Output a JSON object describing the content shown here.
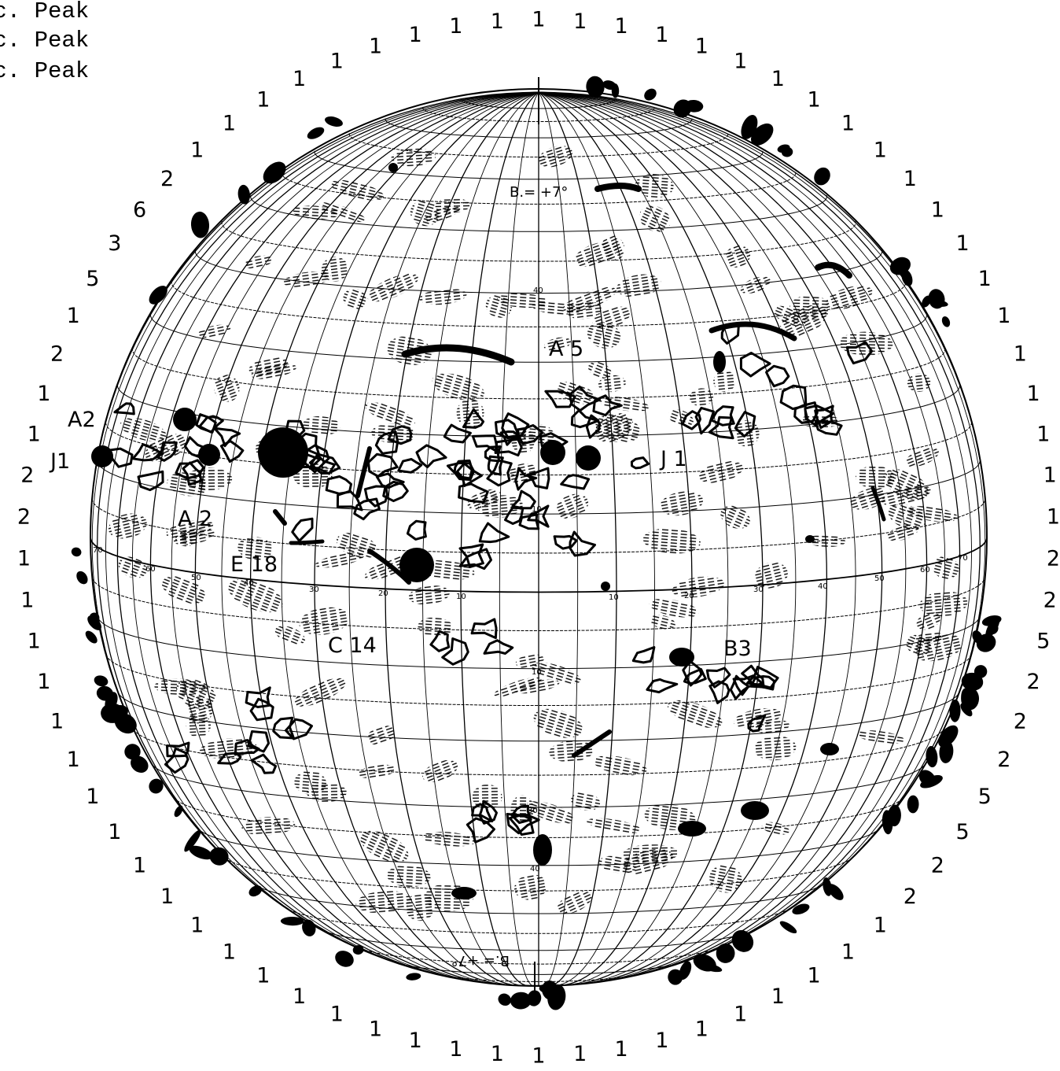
{
  "header_lines": [
    "ac. Peak",
    "ac. Peak",
    "ac. Peak"
  ],
  "pole_labels": {
    "north": "B.= +7°",
    "south": "B.= +7°"
  },
  "region_labels": [
    {
      "text": "A 5"
    },
    {
      "text": "A2"
    },
    {
      "text": "J1"
    },
    {
      "text": "A 2"
    },
    {
      "text": "E 18"
    },
    {
      "text": "J 1"
    },
    {
      "text": "C 14"
    },
    {
      "text": "B3"
    }
  ],
  "grid_tick_labels": [
    "70",
    "60",
    "50",
    "40",
    "30",
    "20",
    "10",
    "10",
    "20",
    "30",
    "40",
    "50",
    "60",
    "70",
    "40",
    "10",
    "10",
    "30",
    "40"
  ],
  "rim_numbers": [
    "1",
    "1",
    "1",
    "1",
    "1",
    "1",
    "1",
    "1",
    "1",
    "1",
    "1",
    "1",
    "1",
    "1",
    "1",
    "1",
    "1",
    "1",
    "1",
    "1",
    "2",
    "2",
    "5",
    "2",
    "2",
    "2",
    "5",
    "5",
    "2",
    "2",
    "1",
    "1",
    "1",
    "1",
    "1",
    "1",
    "1",
    "1",
    "1",
    "1",
    "1",
    "1",
    "1",
    "1",
    "1",
    "1",
    "1",
    "1",
    "1",
    "1",
    "1",
    "1",
    "1",
    "1",
    "1",
    "1",
    "1",
    "1",
    "1",
    "2",
    "2",
    "1",
    "1",
    "2",
    "1",
    "5",
    "3",
    "6",
    "2",
    "1",
    "1",
    "1",
    "1",
    "1",
    "1",
    "1",
    "1",
    "1"
  ],
  "colors": {
    "ink": "#000000",
    "paper": "#ffffff"
  },
  "icons": {
    "sunspot": "filled-black-disc",
    "filament": "black-blob",
    "faculae": "hatched-patch"
  }
}
